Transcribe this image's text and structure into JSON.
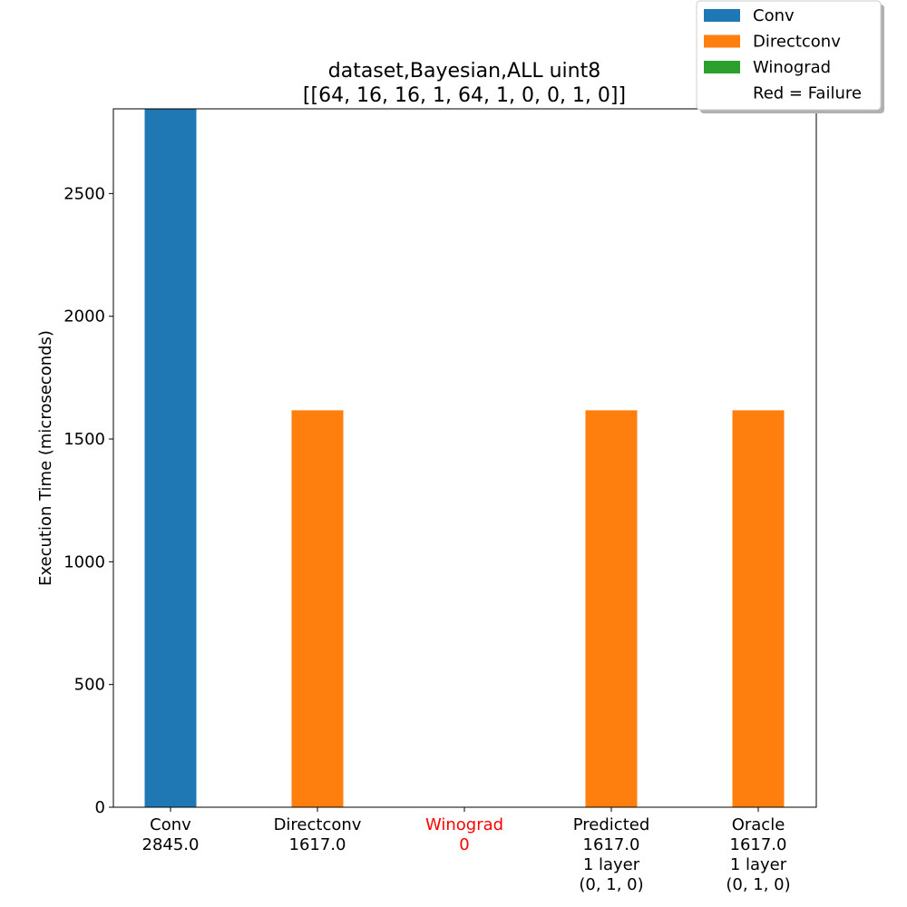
{
  "chart_data": {
    "type": "bar",
    "title": [
      "dataset,Bayesian,ALL uint8",
      "[[64, 16, 16, 1, 64, 1, 0, 0, 1, 0]]"
    ],
    "xlabel": "",
    "ylabel": "Execution Time (microseconds)",
    "ylim": [
      0,
      2845
    ],
    "yticks": [
      0,
      500,
      1000,
      1500,
      2000,
      2500
    ],
    "grid": false,
    "legend_position": "top-right",
    "legend": [
      {
        "label": "Conv",
        "color": "#1f77b4"
      },
      {
        "label": "Directconv",
        "color": "#ff7f0e"
      },
      {
        "label": "Winograd",
        "color": "#2ca02c"
      },
      {
        "label": "Red = Failure",
        "color": null
      }
    ],
    "bars": [
      {
        "label_lines": [
          "Conv",
          "2845.0"
        ],
        "value": 2845.0,
        "series": "Conv",
        "color": "#1f77b4",
        "failure": false
      },
      {
        "label_lines": [
          "Directconv",
          "1617.0"
        ],
        "value": 1617.0,
        "series": "Directconv",
        "color": "#ff7f0e",
        "failure": false
      },
      {
        "label_lines": [
          "Winograd",
          "0"
        ],
        "value": 0,
        "series": "Winograd",
        "color": "#2ca02c",
        "failure": true
      },
      {
        "label_lines": [
          "Predicted",
          "1617.0",
          "1 layer",
          "(0, 1, 0)"
        ],
        "value": 1617.0,
        "series": "Directconv",
        "color": "#ff7f0e",
        "failure": false
      },
      {
        "label_lines": [
          "Oracle",
          "1617.0",
          "1 layer",
          "(0, 1, 0)"
        ],
        "value": 1617.0,
        "series": "Directconv",
        "color": "#ff7f0e",
        "failure": false
      }
    ],
    "failure_color": "#ff0000"
  }
}
